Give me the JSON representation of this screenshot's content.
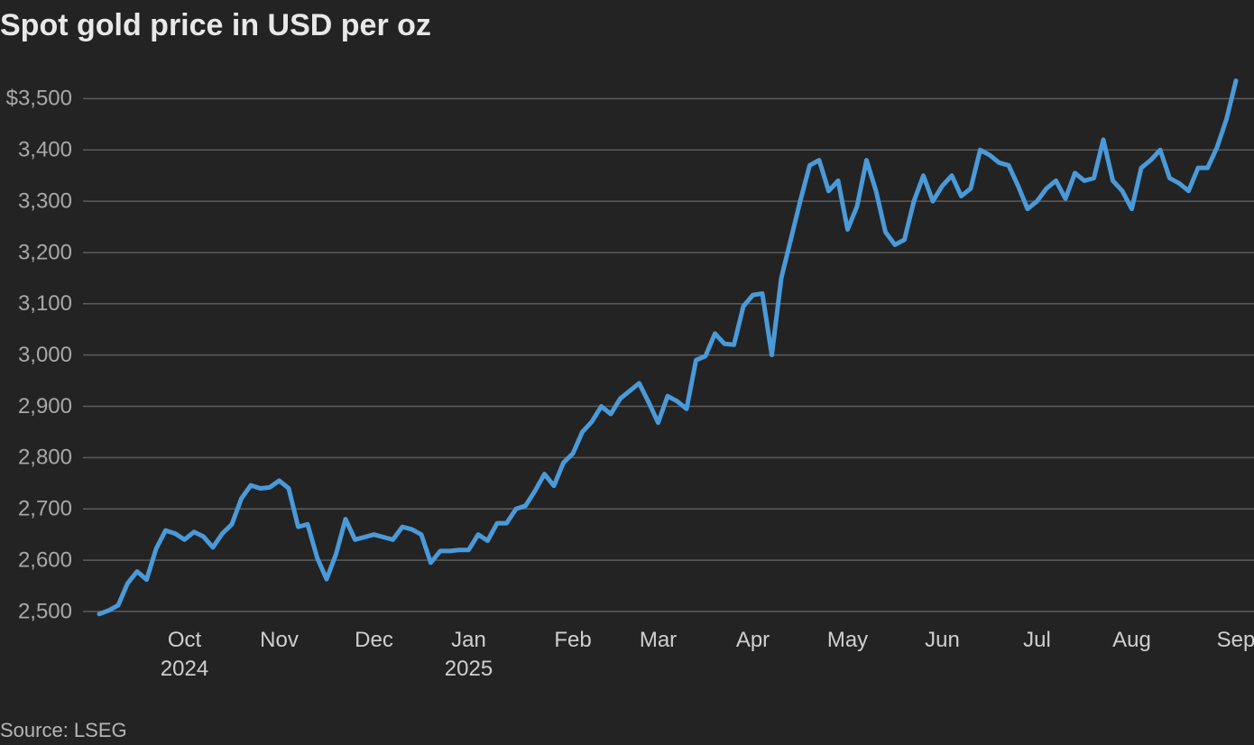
{
  "chart_data": {
    "type": "line",
    "title": "Spot gold price in USD per oz",
    "source": "Source: LSEG",
    "categories": [
      null,
      null,
      null,
      null,
      null,
      null,
      null,
      null,
      null,
      "Oct\n2024",
      null,
      null,
      null,
      null,
      null,
      null,
      null,
      null,
      null,
      "Nov",
      null,
      null,
      null,
      null,
      null,
      null,
      null,
      null,
      null,
      "Dec",
      null,
      null,
      null,
      null,
      null,
      null,
      null,
      null,
      null,
      "Jan\n2025",
      null,
      null,
      null,
      null,
      null,
      null,
      null,
      null,
      null,
      null,
      "Feb",
      null,
      null,
      null,
      null,
      null,
      null,
      null,
      null,
      "Mar",
      null,
      null,
      null,
      null,
      null,
      null,
      null,
      null,
      null,
      "Apr",
      null,
      null,
      null,
      null,
      null,
      null,
      null,
      null,
      null,
      "May",
      null,
      null,
      null,
      null,
      null,
      null,
      null,
      null,
      null,
      "Jun",
      null,
      null,
      null,
      null,
      null,
      null,
      null,
      null,
      null,
      "Jul",
      null,
      null,
      null,
      null,
      null,
      null,
      null,
      null,
      null,
      "Aug",
      null,
      null,
      null,
      null,
      null,
      null,
      null,
      null,
      null,
      null,
      "Sep"
    ],
    "series": [
      {
        "color": "#4a9ad9",
        "values": [
          2495,
          2502,
          2512,
          2555,
          2578,
          2562,
          2622,
          2658,
          2652,
          2640,
          2655,
          2646,
          2625,
          2652,
          2670,
          2720,
          2746,
          2740,
          2742,
          2755,
          2740,
          2665,
          2670,
          2605,
          2563,
          2612,
          2680,
          2640,
          2645,
          2650,
          2645,
          2640,
          2665,
          2660,
          2650,
          2595,
          2618,
          2618,
          2620,
          2620,
          2650,
          2638,
          2672,
          2672,
          2700,
          2706,
          2735,
          2768,
          2745,
          2790,
          2808,
          2850,
          2870,
          2900,
          2885,
          2915,
          2930,
          2945,
          2908,
          2868,
          2920,
          2910,
          2895,
          2990,
          2998,
          3042,
          3022,
          3020,
          3095,
          3117,
          3120,
          3000,
          3150,
          3225,
          3300,
          3370,
          3380,
          3320,
          3340,
          3245,
          3290,
          3380,
          3320,
          3240,
          3215,
          3225,
          3300,
          3350,
          3300,
          3330,
          3350,
          3310,
          3325,
          3400,
          3390,
          3375,
          3370,
          3330,
          3285,
          3300,
          3325,
          3340,
          3305,
          3355,
          3340,
          3345,
          3420,
          3340,
          3320,
          3285,
          3365,
          3380,
          3400,
          3345,
          3335,
          3320,
          3365,
          3365,
          3405,
          3460,
          3535
        ]
      }
    ],
    "ylim": [
      2480,
      3535
    ],
    "yticks": [
      {
        "value": 2500,
        "label": "2,500"
      },
      {
        "value": 2600,
        "label": "2,600"
      },
      {
        "value": 2700,
        "label": "2,700"
      },
      {
        "value": 2800,
        "label": "2,800"
      },
      {
        "value": 2900,
        "label": "2,900"
      },
      {
        "value": 3000,
        "label": "3,000"
      },
      {
        "value": 3100,
        "label": "3,100"
      },
      {
        "value": 3200,
        "label": "3,200"
      },
      {
        "value": 3300,
        "label": "3,300"
      },
      {
        "value": 3400,
        "label": "3,400"
      },
      {
        "value": 3500,
        "label": "$3,500"
      }
    ],
    "grid": true
  }
}
